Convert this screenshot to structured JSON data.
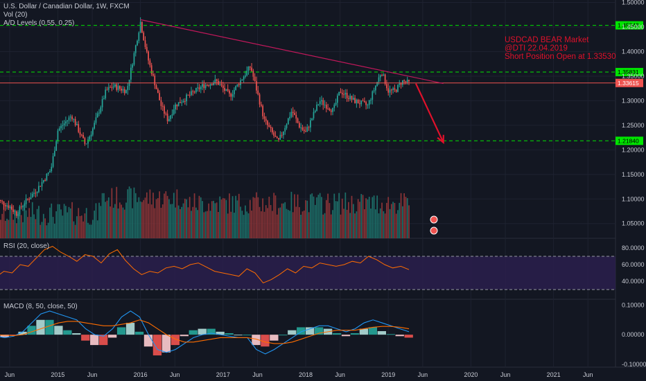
{
  "chart_data": {
    "type": "candlestick",
    "symbol_title": "U.S. Dollar / Canadian Dollar, 1W, FXCM",
    "indicators": [
      "Vol (20)",
      "A/D Levels (0.55, 0.25)"
    ],
    "price_axis": {
      "ticks": [
        "1.50000",
        "1.45000",
        "1.40000",
        "1.35000",
        "1.30000",
        "1.25000",
        "1.20000",
        "1.15000",
        "1.10000",
        "1.05000"
      ],
      "range": [
        1.02,
        1.505
      ]
    },
    "time_axis": [
      "Jun",
      "2015",
      "Jun",
      "2016",
      "Jun",
      "2017",
      "Jun",
      "2018",
      "Jun",
      "2019",
      "Jun",
      "2020",
      "Jun",
      "2021",
      "Jun"
    ],
    "levels": [
      {
        "value": 1.45343,
        "label": "1.45343",
        "color": "#00e400",
        "style": "dashed"
      },
      {
        "value": 1.35831,
        "label": "1.35831",
        "color": "#00e400",
        "style": "dashed"
      },
      {
        "value": 1.33615,
        "label": "1.33615",
        "color": "#ef5350",
        "style": "solid"
      },
      {
        "value": 1.2184,
        "label": "1.21840",
        "color": "#00e400",
        "style": "dashed"
      }
    ],
    "annotation": [
      "USDCAD BEAR Market",
      "@DTI 22.04.2019",
      "Short Position Open at 1.33530"
    ],
    "trendline": {
      "from": {
        "time": "2016-01",
        "price": 1.465
      },
      "to": {
        "time": "2019-09",
        "price": 1.335
      },
      "color": "#c2185b"
    },
    "arrow": {
      "from": {
        "time": "2019-05",
        "price": 1.335
      },
      "to": {
        "time": "2019-09",
        "price": 1.215
      },
      "color": "#e0112b"
    },
    "price_path": [
      {
        "t": "2014-04",
        "p": 1.1
      },
      {
        "t": "2014-06",
        "p": 1.085
      },
      {
        "t": "2014-07",
        "p": 1.07
      },
      {
        "t": "2014-08",
        "p": 1.09
      },
      {
        "t": "2014-10",
        "p": 1.12
      },
      {
        "t": "2014-12",
        "p": 1.16
      },
      {
        "t": "2015-01",
        "p": 1.24
      },
      {
        "t": "2015-03",
        "p": 1.27
      },
      {
        "t": "2015-05",
        "p": 1.21
      },
      {
        "t": "2015-06",
        "p": 1.24
      },
      {
        "t": "2015-08",
        "p": 1.32
      },
      {
        "t": "2015-09",
        "p": 1.33
      },
      {
        "t": "2015-11",
        "p": 1.32
      },
      {
        "t": "2015-12",
        "p": 1.39
      },
      {
        "t": "2016-01",
        "p": 1.46
      },
      {
        "t": "2016-02",
        "p": 1.39
      },
      {
        "t": "2016-04",
        "p": 1.29
      },
      {
        "t": "2016-05",
        "p": 1.26
      },
      {
        "t": "2016-06",
        "p": 1.29
      },
      {
        "t": "2016-08",
        "p": 1.31
      },
      {
        "t": "2016-10",
        "p": 1.33
      },
      {
        "t": "2016-12",
        "p": 1.34
      },
      {
        "t": "2017-02",
        "p": 1.31
      },
      {
        "t": "2017-04",
        "p": 1.35
      },
      {
        "t": "2017-05",
        "p": 1.37
      },
      {
        "t": "2017-07",
        "p": 1.26
      },
      {
        "t": "2017-09",
        "p": 1.215
      },
      {
        "t": "2017-11",
        "p": 1.28
      },
      {
        "t": "2017-12",
        "p": 1.25
      },
      {
        "t": "2018-01",
        "p": 1.235
      },
      {
        "t": "2018-03",
        "p": 1.3
      },
      {
        "t": "2018-05",
        "p": 1.28
      },
      {
        "t": "2018-06",
        "p": 1.32
      },
      {
        "t": "2018-08",
        "p": 1.3
      },
      {
        "t": "2018-10",
        "p": 1.29
      },
      {
        "t": "2018-12",
        "p": 1.36
      },
      {
        "t": "2019-01",
        "p": 1.32
      },
      {
        "t": "2019-02",
        "p": 1.32
      },
      {
        "t": "2019-03",
        "p": 1.34
      },
      {
        "t": "2019-04",
        "p": 1.336
      }
    ],
    "volume_axis": {
      "markers": [
        "vol-marker-1",
        "vol-marker-2"
      ]
    },
    "rsi": {
      "title": "RSI (20, close)",
      "ticks": [
        "80.0000",
        "60.0000",
        "40.0000"
      ],
      "range": [
        20,
        90
      ],
      "bands": [
        70,
        30
      ],
      "color": "#ff6d00",
      "band_fill": "#2a1e4c",
      "values": [
        45,
        52,
        50,
        60,
        58,
        68,
        78,
        82,
        75,
        70,
        64,
        72,
        70,
        62,
        73,
        78,
        65,
        55,
        48,
        52,
        50,
        56,
        58,
        55,
        60,
        62,
        57,
        52,
        50,
        48,
        46,
        55,
        50,
        38,
        42,
        48,
        55,
        50,
        58,
        56,
        62,
        60,
        58,
        60,
        64,
        62,
        70,
        66,
        60,
        56,
        58,
        54
      ]
    },
    "macd": {
      "title": "MACD (8, 50, close, 50)",
      "ticks": [
        "0.10000",
        "0.00000",
        "-0.10000"
      ],
      "range": [
        -0.105,
        0.115
      ],
      "line_color": "#2196f3",
      "signal_color": "#ff6d00",
      "macd": [
        -0.005,
        -0.01,
        -0.005,
        0.01,
        0.04,
        0.07,
        0.08,
        0.07,
        0.06,
        0.05,
        0.02,
        0.0,
        -0.005,
        0.02,
        0.06,
        0.08,
        0.06,
        0.0,
        -0.05,
        -0.06,
        -0.05,
        -0.03,
        -0.01,
        0.0,
        0.005,
        0.0,
        -0.005,
        -0.01,
        -0.01,
        -0.05,
        -0.065,
        -0.05,
        -0.03,
        -0.01,
        0.01,
        0.02,
        0.03,
        0.03,
        0.02,
        0.01,
        0.02,
        0.04,
        0.05,
        0.04,
        0.03,
        0.02,
        0.01
      ],
      "signal": [
        0.0,
        -0.002,
        -0.003,
        0.0,
        0.01,
        0.02,
        0.03,
        0.04,
        0.045,
        0.045,
        0.04,
        0.035,
        0.03,
        0.03,
        0.035,
        0.04,
        0.05,
        0.04,
        0.02,
        0.0,
        -0.015,
        -0.025,
        -0.025,
        -0.02,
        -0.015,
        -0.01,
        -0.01,
        -0.01,
        -0.01,
        -0.015,
        -0.025,
        -0.03,
        -0.03,
        -0.025,
        -0.015,
        -0.005,
        0.005,
        0.01,
        0.015,
        0.015,
        0.015,
        0.02,
        0.025,
        0.028,
        0.028,
        0.025,
        0.02
      ]
    },
    "colors": {
      "up": "#26a69a",
      "down": "#ef5350",
      "up_vol": "#1d6e68",
      "down_vol": "#8a3437",
      "grid": "#1e2230",
      "bg": "#131722",
      "axis_text": "#c8cbd4"
    }
  }
}
